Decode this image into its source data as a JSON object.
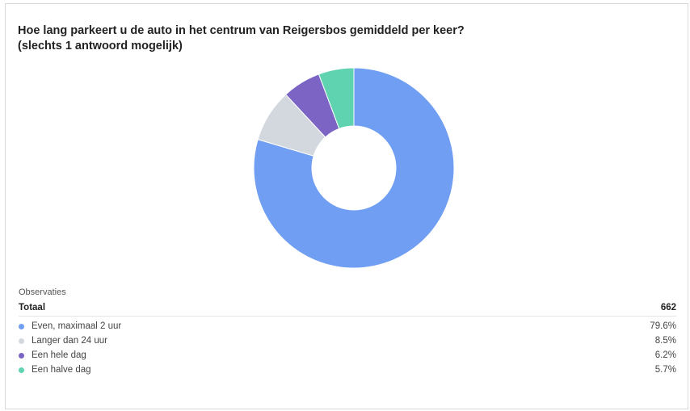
{
  "chart_data": {
    "type": "pie",
    "title": "Hoe lang parkeert u de auto in het centrum van Reigersbos gemiddeld per keer?",
    "subtitle": "(slechts 1 antwoord mogelijk)",
    "donut": true,
    "categories": [
      "Even, maximaal 2 uur",
      "Langer dan 24 uur",
      "Een hele dag",
      "Een halve dag"
    ],
    "values": [
      79.6,
      8.5,
      6.2,
      5.7
    ],
    "value_labels": [
      "79.6%",
      "8.5%",
      "6.2%",
      "5.7%"
    ],
    "colors": [
      "#6f9ef2",
      "#d3d8df",
      "#7b64c4",
      "#5fd3b0"
    ],
    "legend_placement": "bottom"
  },
  "observations": {
    "heading": "Observaties",
    "total_label": "Totaal",
    "total_value": "662"
  }
}
